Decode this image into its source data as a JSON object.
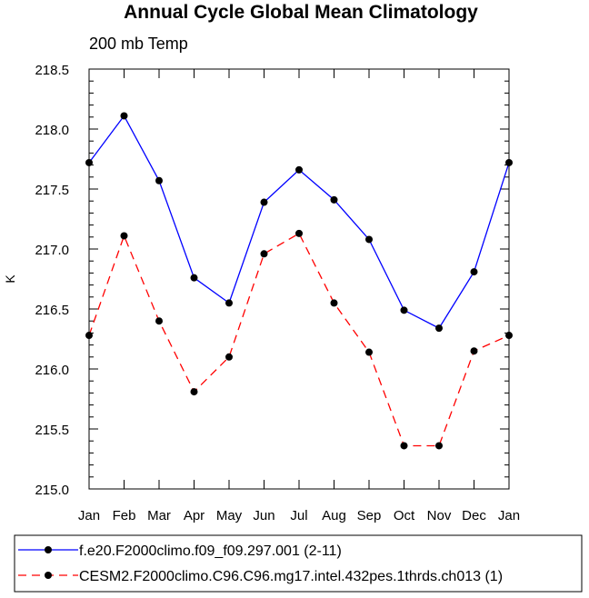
{
  "chart_data": {
    "type": "line",
    "title": "Annual Cycle Global Mean Climatology",
    "subtitle": "200 mb Temp",
    "xlabel": "",
    "ylabel": "K",
    "categories": [
      "Jan",
      "Feb",
      "Mar",
      "Apr",
      "May",
      "Jun",
      "Jul",
      "Aug",
      "Sep",
      "Oct",
      "Nov",
      "Dec",
      "Jan"
    ],
    "ylim": [
      215.0,
      218.5
    ],
    "yticks": [
      "215.0",
      "215.5",
      "216.0",
      "216.5",
      "217.0",
      "217.5",
      "218.0",
      "218.5"
    ],
    "series": [
      {
        "name": "f.e20.F2000climo.f09_f09.297.001 (2-11)",
        "color": "#0000ff",
        "dash": "solid",
        "values": [
          217.72,
          218.11,
          217.57,
          216.76,
          216.55,
          217.39,
          217.66,
          217.41,
          217.08,
          216.49,
          216.34,
          216.81,
          217.72
        ]
      },
      {
        "name": "CESM2.F2000climo.C96.C96.mg17.intel.432pes.1thrds.ch013 (1)",
        "color": "#ff0000",
        "dash": "dashed",
        "values": [
          216.28,
          217.11,
          216.4,
          215.81,
          216.1,
          216.96,
          217.13,
          216.55,
          216.14,
          215.36,
          215.36,
          216.15,
          216.28
        ]
      }
    ]
  }
}
